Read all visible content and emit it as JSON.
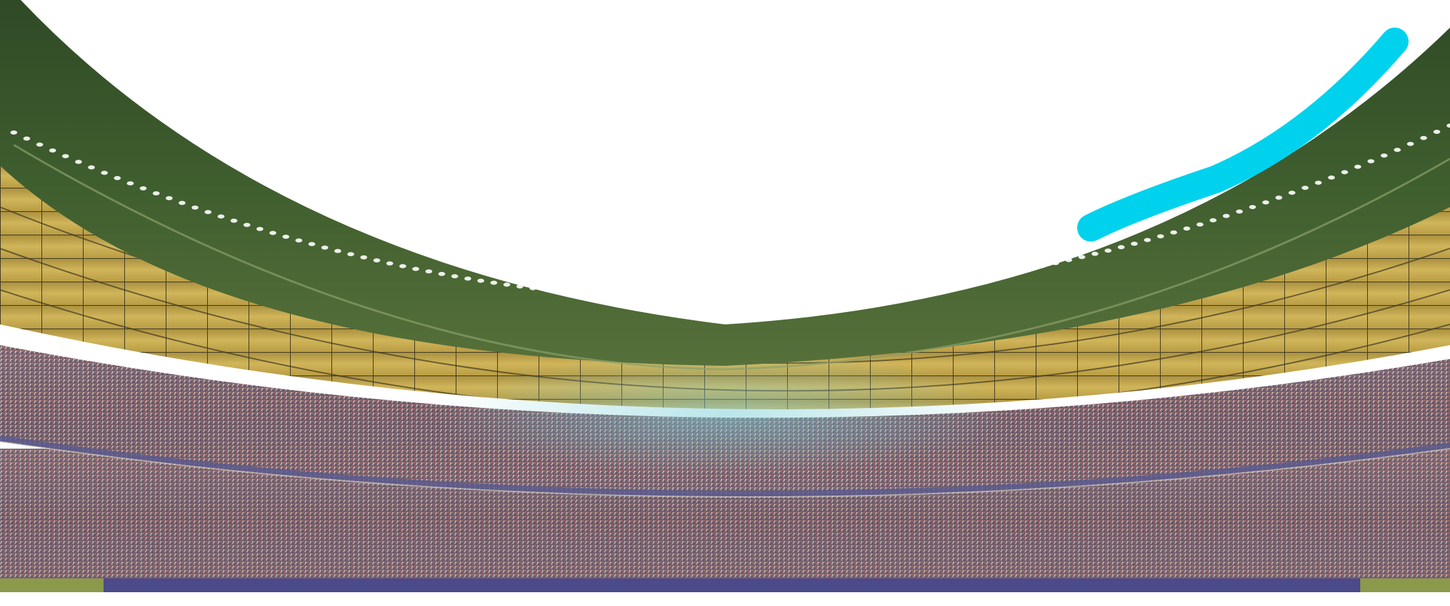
{
  "scene": {
    "description_type": "photograph",
    "subject": "stadium-interior",
    "elements": [
      "sky",
      "roof-canopy",
      "floodlights",
      "upper-tier-crowd",
      "lower-tier-crowd",
      "advertising-boards",
      "paint-stroke"
    ],
    "colors": {
      "sky": "#ffffff",
      "roof_outer": "#3f5e2e",
      "roof_inner": "#6f7a3a",
      "roof_panels": "#c9ae4e",
      "panel_lines": "#4a4528",
      "floodlight": "#ffffff",
      "crowd_base": "#7a6670",
      "ad_board": "#4b4a8a",
      "paint_stroke": "#00d2ee"
    }
  },
  "ads": {
    "left": "",
    "right": ""
  }
}
